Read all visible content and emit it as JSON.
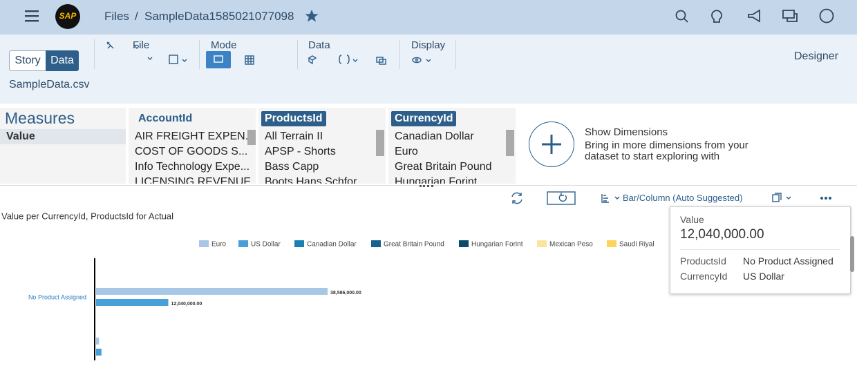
{
  "header": {
    "logo": "SAP",
    "root": "Files",
    "separator": "/",
    "file": "SampleData1585021077098"
  },
  "toolbar": {
    "tabs": [
      "Story",
      "Data"
    ],
    "groups": [
      "File",
      "Mode",
      "Data",
      "Display"
    ],
    "designer": "Designer",
    "dataset": "SampleData.csv"
  },
  "measures": {
    "title": "Measures",
    "items": [
      "Value"
    ]
  },
  "dimensions": [
    {
      "name": "AccountId",
      "members": [
        "AIR FREIGHT EXPEN...",
        "COST OF GOODS S...",
        "Info Technology Expe...",
        "LICENSING REVENUE"
      ]
    },
    {
      "name": "ProductsId",
      "members": [
        "All Terrain II",
        "APSP - Shorts",
        "Bass Capp",
        "Boots Hans Schfor"
      ]
    },
    {
      "name": "CurrencyId",
      "members": [
        "Canadian Dollar",
        "Euro",
        "Great Britain Pound",
        "Hungarian Forint"
      ]
    }
  ],
  "show_dimensions": {
    "title": "Show Dimensions",
    "text": "Bring in more dimensions from your dataset to start exploring with"
  },
  "chart_toolbar": {
    "chart_type": "Bar/Column (Auto Suggested)"
  },
  "chart_data": {
    "type": "bar",
    "orientation": "horizontal",
    "title": "Value per CurrencyId, ProductsId for Actual",
    "categories": [
      "No Product Assigned",
      null
    ],
    "series": [
      {
        "name": "Euro",
        "color": "#a8c6e6",
        "values": [
          38586000,
          500000
        ],
        "value_labels": [
          "38,586,000.00",
          null
        ]
      },
      {
        "name": "US Dollar",
        "color": "#4a9fd8",
        "values": [
          12040000,
          900000
        ],
        "value_labels": [
          "12,040,000.00",
          null
        ]
      },
      {
        "name": "Canadian Dollar",
        "color": "#1b7fb5",
        "values": [
          null,
          null
        ]
      },
      {
        "name": "Great Britain Pound",
        "color": "#14628d",
        "values": [
          null,
          null
        ]
      },
      {
        "name": "Hungarian Forint",
        "color": "#0a4a6a",
        "values": [
          null,
          null
        ]
      },
      {
        "name": "Mexican Peso",
        "color": "#fbe4a0",
        "values": [
          null,
          null
        ]
      },
      {
        "name": "Saudi Riyal",
        "color": "#fbd45c",
        "values": [
          null,
          null
        ]
      }
    ]
  },
  "tooltip": {
    "measure": "Value",
    "value": "12,040,000.00",
    "rows": [
      [
        "ProductsId",
        "No Product Assigned"
      ],
      [
        "CurrencyId",
        "US Dollar"
      ]
    ]
  }
}
